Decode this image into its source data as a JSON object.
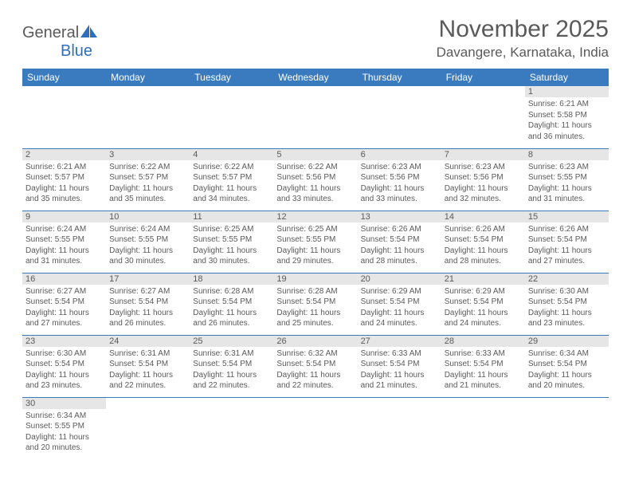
{
  "colors": {
    "header_bg": "#3a7bbf",
    "header_text": "#ffffff",
    "daynum_bg": "#e6e6e6",
    "text": "#5a5a5a",
    "border": "#3a7bbf",
    "logo_blue": "#2d6fba",
    "background": "#ffffff"
  },
  "fonts": {
    "base": "Arial",
    "title_size_pt": 22,
    "location_size_pt": 13,
    "weekday_size_pt": 9,
    "daynum_size_pt": 8,
    "content_size_pt": 7.5
  },
  "logo": {
    "general": "General",
    "blue": "Blue"
  },
  "title": "November 2025",
  "location": "Davangere, Karnataka, India",
  "weekdays": [
    "Sunday",
    "Monday",
    "Tuesday",
    "Wednesday",
    "Thursday",
    "Friday",
    "Saturday"
  ],
  "weeks": [
    [
      {
        "n": "",
        "sunrise": "",
        "sunset": "",
        "daylight": ""
      },
      {
        "n": "",
        "sunrise": "",
        "sunset": "",
        "daylight": ""
      },
      {
        "n": "",
        "sunrise": "",
        "sunset": "",
        "daylight": ""
      },
      {
        "n": "",
        "sunrise": "",
        "sunset": "",
        "daylight": ""
      },
      {
        "n": "",
        "sunrise": "",
        "sunset": "",
        "daylight": ""
      },
      {
        "n": "",
        "sunrise": "",
        "sunset": "",
        "daylight": ""
      },
      {
        "n": "1",
        "sunrise": "Sunrise: 6:21 AM",
        "sunset": "Sunset: 5:58 PM",
        "daylight": "Daylight: 11 hours and 36 minutes."
      }
    ],
    [
      {
        "n": "2",
        "sunrise": "Sunrise: 6:21 AM",
        "sunset": "Sunset: 5:57 PM",
        "daylight": "Daylight: 11 hours and 35 minutes."
      },
      {
        "n": "3",
        "sunrise": "Sunrise: 6:22 AM",
        "sunset": "Sunset: 5:57 PM",
        "daylight": "Daylight: 11 hours and 35 minutes."
      },
      {
        "n": "4",
        "sunrise": "Sunrise: 6:22 AM",
        "sunset": "Sunset: 5:57 PM",
        "daylight": "Daylight: 11 hours and 34 minutes."
      },
      {
        "n": "5",
        "sunrise": "Sunrise: 6:22 AM",
        "sunset": "Sunset: 5:56 PM",
        "daylight": "Daylight: 11 hours and 33 minutes."
      },
      {
        "n": "6",
        "sunrise": "Sunrise: 6:23 AM",
        "sunset": "Sunset: 5:56 PM",
        "daylight": "Daylight: 11 hours and 33 minutes."
      },
      {
        "n": "7",
        "sunrise": "Sunrise: 6:23 AM",
        "sunset": "Sunset: 5:56 PM",
        "daylight": "Daylight: 11 hours and 32 minutes."
      },
      {
        "n": "8",
        "sunrise": "Sunrise: 6:23 AM",
        "sunset": "Sunset: 5:55 PM",
        "daylight": "Daylight: 11 hours and 31 minutes."
      }
    ],
    [
      {
        "n": "9",
        "sunrise": "Sunrise: 6:24 AM",
        "sunset": "Sunset: 5:55 PM",
        "daylight": "Daylight: 11 hours and 31 minutes."
      },
      {
        "n": "10",
        "sunrise": "Sunrise: 6:24 AM",
        "sunset": "Sunset: 5:55 PM",
        "daylight": "Daylight: 11 hours and 30 minutes."
      },
      {
        "n": "11",
        "sunrise": "Sunrise: 6:25 AM",
        "sunset": "Sunset: 5:55 PM",
        "daylight": "Daylight: 11 hours and 30 minutes."
      },
      {
        "n": "12",
        "sunrise": "Sunrise: 6:25 AM",
        "sunset": "Sunset: 5:55 PM",
        "daylight": "Daylight: 11 hours and 29 minutes."
      },
      {
        "n": "13",
        "sunrise": "Sunrise: 6:26 AM",
        "sunset": "Sunset: 5:54 PM",
        "daylight": "Daylight: 11 hours and 28 minutes."
      },
      {
        "n": "14",
        "sunrise": "Sunrise: 6:26 AM",
        "sunset": "Sunset: 5:54 PM",
        "daylight": "Daylight: 11 hours and 28 minutes."
      },
      {
        "n": "15",
        "sunrise": "Sunrise: 6:26 AM",
        "sunset": "Sunset: 5:54 PM",
        "daylight": "Daylight: 11 hours and 27 minutes."
      }
    ],
    [
      {
        "n": "16",
        "sunrise": "Sunrise: 6:27 AM",
        "sunset": "Sunset: 5:54 PM",
        "daylight": "Daylight: 11 hours and 27 minutes."
      },
      {
        "n": "17",
        "sunrise": "Sunrise: 6:27 AM",
        "sunset": "Sunset: 5:54 PM",
        "daylight": "Daylight: 11 hours and 26 minutes."
      },
      {
        "n": "18",
        "sunrise": "Sunrise: 6:28 AM",
        "sunset": "Sunset: 5:54 PM",
        "daylight": "Daylight: 11 hours and 26 minutes."
      },
      {
        "n": "19",
        "sunrise": "Sunrise: 6:28 AM",
        "sunset": "Sunset: 5:54 PM",
        "daylight": "Daylight: 11 hours and 25 minutes."
      },
      {
        "n": "20",
        "sunrise": "Sunrise: 6:29 AM",
        "sunset": "Sunset: 5:54 PM",
        "daylight": "Daylight: 11 hours and 24 minutes."
      },
      {
        "n": "21",
        "sunrise": "Sunrise: 6:29 AM",
        "sunset": "Sunset: 5:54 PM",
        "daylight": "Daylight: 11 hours and 24 minutes."
      },
      {
        "n": "22",
        "sunrise": "Sunrise: 6:30 AM",
        "sunset": "Sunset: 5:54 PM",
        "daylight": "Daylight: 11 hours and 23 minutes."
      }
    ],
    [
      {
        "n": "23",
        "sunrise": "Sunrise: 6:30 AM",
        "sunset": "Sunset: 5:54 PM",
        "daylight": "Daylight: 11 hours and 23 minutes."
      },
      {
        "n": "24",
        "sunrise": "Sunrise: 6:31 AM",
        "sunset": "Sunset: 5:54 PM",
        "daylight": "Daylight: 11 hours and 22 minutes."
      },
      {
        "n": "25",
        "sunrise": "Sunrise: 6:31 AM",
        "sunset": "Sunset: 5:54 PM",
        "daylight": "Daylight: 11 hours and 22 minutes."
      },
      {
        "n": "26",
        "sunrise": "Sunrise: 6:32 AM",
        "sunset": "Sunset: 5:54 PM",
        "daylight": "Daylight: 11 hours and 22 minutes."
      },
      {
        "n": "27",
        "sunrise": "Sunrise: 6:33 AM",
        "sunset": "Sunset: 5:54 PM",
        "daylight": "Daylight: 11 hours and 21 minutes."
      },
      {
        "n": "28",
        "sunrise": "Sunrise: 6:33 AM",
        "sunset": "Sunset: 5:54 PM",
        "daylight": "Daylight: 11 hours and 21 minutes."
      },
      {
        "n": "29",
        "sunrise": "Sunrise: 6:34 AM",
        "sunset": "Sunset: 5:54 PM",
        "daylight": "Daylight: 11 hours and 20 minutes."
      }
    ],
    [
      {
        "n": "30",
        "sunrise": "Sunrise: 6:34 AM",
        "sunset": "Sunset: 5:55 PM",
        "daylight": "Daylight: 11 hours and 20 minutes."
      },
      {
        "n": "",
        "sunrise": "",
        "sunset": "",
        "daylight": ""
      },
      {
        "n": "",
        "sunrise": "",
        "sunset": "",
        "daylight": ""
      },
      {
        "n": "",
        "sunrise": "",
        "sunset": "",
        "daylight": ""
      },
      {
        "n": "",
        "sunrise": "",
        "sunset": "",
        "daylight": ""
      },
      {
        "n": "",
        "sunrise": "",
        "sunset": "",
        "daylight": ""
      },
      {
        "n": "",
        "sunrise": "",
        "sunset": "",
        "daylight": ""
      }
    ]
  ]
}
